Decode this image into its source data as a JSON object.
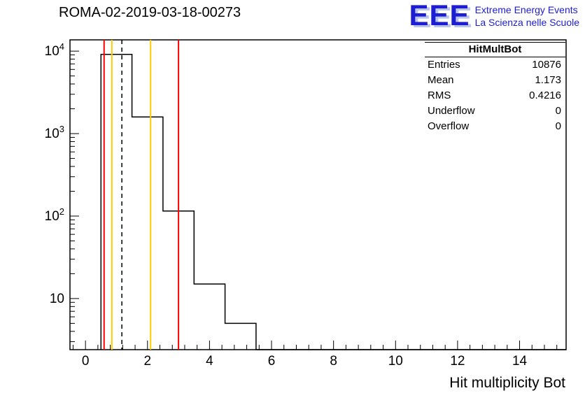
{
  "page": {
    "title": "ROMA-02-2019-03-18-00273"
  },
  "logo": {
    "acronym": "EEE",
    "line1": "Extreme Energy Events",
    "line2": "La Scienza nelle Scuole",
    "color": "#1d1dd1"
  },
  "stats_box": {
    "title": "HitMultBot",
    "rows": [
      {
        "label": "Entries",
        "value": "10876"
      },
      {
        "label": "Mean",
        "value": "1.173"
      },
      {
        "label": "RMS",
        "value": "0.4216"
      },
      {
        "label": "Underflow",
        "value": "0"
      },
      {
        "label": "Overflow",
        "value": "0"
      }
    ]
  },
  "chart_data": {
    "type": "bar",
    "subtype": "step-histogram",
    "title": "ROMA-02-2019-03-18-00273",
    "xlabel": "Hit multiplicity Bot",
    "ylabel": "",
    "y_scale": "log",
    "x_range": [
      -0.5,
      15.5
    ],
    "y_range_log": [
      2.4,
      13700
    ],
    "x_tick_labels": [
      "0",
      "2",
      "4",
      "6",
      "8",
      "10",
      "12",
      "14"
    ],
    "x_major_values": [
      0,
      2,
      4,
      6,
      8,
      10,
      12,
      14
    ],
    "x_minor_step": 0.4,
    "y_tick_exponents": [
      1,
      2,
      3,
      4
    ],
    "grid": false,
    "line_color": "#000000",
    "first_bin_left_edge": 0.5,
    "bin_width": 1,
    "bin_centers": [
      1,
      2,
      3,
      4,
      5
    ],
    "values": [
      9150,
      1590,
      115,
      15,
      5
    ],
    "vertical_lines": [
      {
        "x": 0.6,
        "color": "#ff0000",
        "style": "solid",
        "name": "red-low-cut-line"
      },
      {
        "x": 0.85,
        "color": "#ffcc00",
        "style": "solid",
        "name": "orange-low-line"
      },
      {
        "x": 1.173,
        "color": "#000000",
        "style": "dashed",
        "name": "mean-dashed-line"
      },
      {
        "x": 2.1,
        "color": "#ffcc00",
        "style": "solid",
        "name": "orange-high-line"
      },
      {
        "x": 3.0,
        "color": "#ff0000",
        "style": "solid",
        "name": "red-high-cut-line"
      }
    ]
  }
}
